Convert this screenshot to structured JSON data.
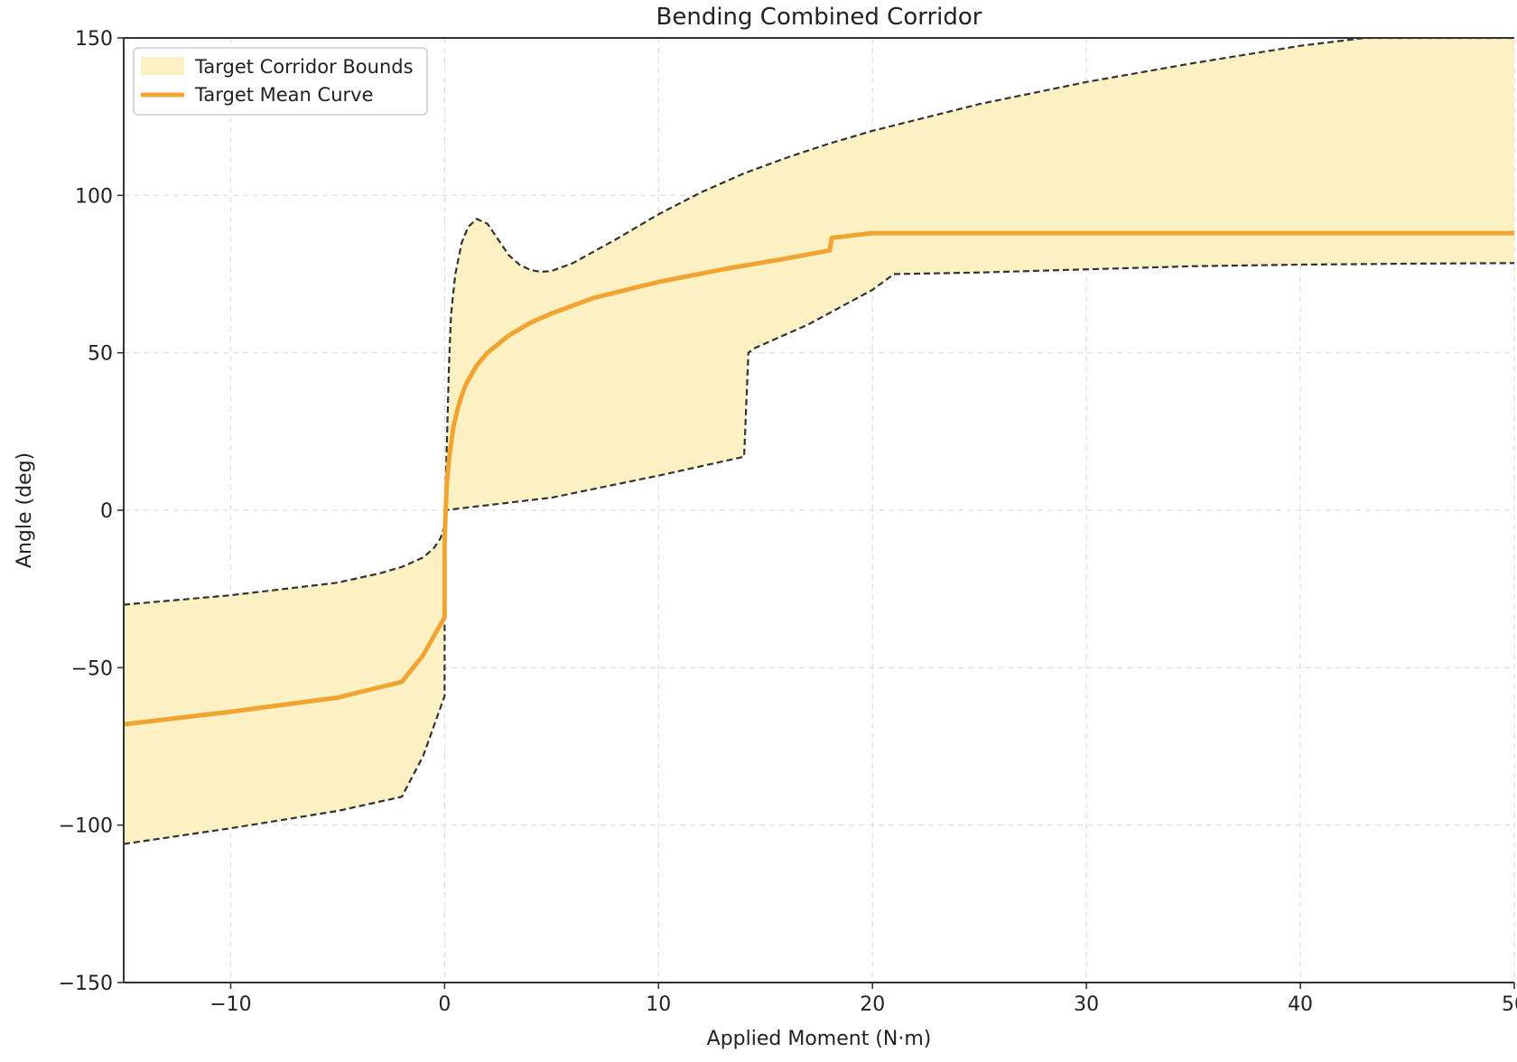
{
  "chart_data": {
    "type": "area",
    "title": "Bending Combined Corridor",
    "xlabel": "Applied Moment (N·m)",
    "ylabel": "Angle (deg)",
    "xlim": [
      -15,
      50
    ],
    "ylim": [
      -150,
      150
    ],
    "xticks": [
      -10,
      0,
      10,
      20,
      30,
      40,
      50
    ],
    "xtick_labels": [
      "−10",
      "0",
      "10",
      "20",
      "30",
      "40",
      "50"
    ],
    "yticks": [
      -150,
      -100,
      -50,
      0,
      50,
      100,
      150
    ],
    "ytick_labels": [
      "−150",
      "−100",
      "−50",
      "0",
      "50",
      "100",
      "150"
    ],
    "grid": true,
    "legend_position": "top-left",
    "colors": {
      "corridor_fill": "#fbf1c3",
      "bound_line": "#333333",
      "mean_curve": "#f2a433",
      "grid": "#dddddd",
      "axis": "#333333"
    },
    "series": [
      {
        "name": "Target Corridor Bounds",
        "kind": "band",
        "upper": [
          [
            -15,
            -30
          ],
          [
            -10,
            -27
          ],
          [
            -5,
            -23
          ],
          [
            -3,
            -20
          ],
          [
            -2,
            -18
          ],
          [
            -1,
            -15
          ],
          [
            -0.5,
            -12
          ],
          [
            -0.2,
            -9
          ],
          [
            0,
            -5
          ],
          [
            0.1,
            20
          ],
          [
            0.2,
            45
          ],
          [
            0.3,
            62
          ],
          [
            0.5,
            75
          ],
          [
            0.8,
            85
          ],
          [
            1.1,
            90
          ],
          [
            1.5,
            92.5
          ],
          [
            2,
            91
          ],
          [
            2.5,
            86
          ],
          [
            3,
            81
          ],
          [
            3.5,
            78
          ],
          [
            4,
            76.3
          ],
          [
            4.5,
            75.7
          ],
          [
            5,
            76
          ],
          [
            6,
            78.5
          ],
          [
            8,
            86
          ],
          [
            10,
            94
          ],
          [
            12,
            101
          ],
          [
            14,
            107
          ],
          [
            16,
            112
          ],
          [
            18,
            116.5
          ],
          [
            20,
            120.5
          ],
          [
            25,
            129
          ],
          [
            30,
            136
          ],
          [
            35,
            142
          ],
          [
            40,
            147.5
          ],
          [
            43,
            150
          ],
          [
            50,
            150
          ]
        ],
        "lower": [
          [
            -15,
            -106
          ],
          [
            -10,
            -101
          ],
          [
            -5,
            -95.5
          ],
          [
            -2,
            -91
          ],
          [
            -1,
            -78
          ],
          [
            0,
            -59
          ],
          [
            0,
            0
          ],
          [
            5,
            4
          ],
          [
            10,
            11
          ],
          [
            14,
            17
          ],
          [
            14.2,
            50
          ],
          [
            14.5,
            51.5
          ],
          [
            17,
            59
          ],
          [
            20,
            70
          ],
          [
            21,
            75
          ],
          [
            25,
            75.5
          ],
          [
            30,
            76.5
          ],
          [
            35,
            77.5
          ],
          [
            40,
            78
          ],
          [
            45,
            78.3
          ],
          [
            50,
            78.5
          ]
        ]
      },
      {
        "name": "Target Mean Curve",
        "kind": "line",
        "points": [
          [
            -15,
            -68
          ],
          [
            -10,
            -64
          ],
          [
            -5,
            -59.5
          ],
          [
            -2,
            -54.5
          ],
          [
            -1,
            -46
          ],
          [
            0,
            -34
          ],
          [
            0,
            -10
          ],
          [
            0.05,
            0
          ],
          [
            0.1,
            8
          ],
          [
            0.2,
            16
          ],
          [
            0.4,
            26
          ],
          [
            0.6,
            32
          ],
          [
            0.8,
            36.5
          ],
          [
            1,
            40
          ],
          [
            1.5,
            46
          ],
          [
            2,
            50
          ],
          [
            3,
            55.5
          ],
          [
            4,
            59.5
          ],
          [
            5,
            62.5
          ],
          [
            7,
            67.5
          ],
          [
            10,
            72.5
          ],
          [
            13,
            76.5
          ],
          [
            16,
            80
          ],
          [
            18,
            82.5
          ],
          [
            18.1,
            86.5
          ],
          [
            20,
            88
          ],
          [
            30,
            88
          ],
          [
            40,
            88
          ],
          [
            50,
            88
          ]
        ]
      }
    ]
  }
}
